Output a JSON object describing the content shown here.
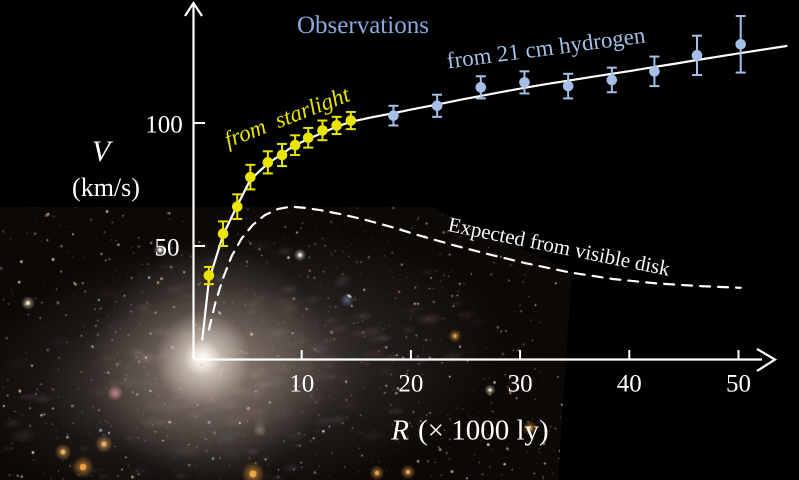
{
  "figure": {
    "background_color": "#000000",
    "axis_color": "#ffffff",
    "description": "Galaxy rotation curve plotted over a photograph of a spiral galaxy"
  },
  "chart_data": {
    "type": "scatter",
    "title": "",
    "x_axis": {
      "symbol": "R",
      "units": "(× 1000 ly)"
    },
    "y_axis": {
      "symbol": "V",
      "units": "(km/s)"
    },
    "xlim": [
      0,
      54
    ],
    "ylim": [
      0,
      150
    ],
    "x_ticks": [
      10,
      20,
      30,
      40,
      50
    ],
    "y_ticks": [
      50,
      100
    ],
    "grid": false,
    "annotations": [
      {
        "text": "Observations",
        "color": "#8aa9dc"
      },
      {
        "text": "from  starlight",
        "color": "#e9e500"
      },
      {
        "text": "from 21 cm hydrogen",
        "color": "#a5bfe8"
      },
      {
        "text": "Expected from visible disk",
        "color": "#f5f5f5"
      }
    ],
    "series": [
      {
        "name": "from starlight",
        "marker_color": "#e9e500",
        "R": [
          1.5,
          2.8,
          4.1,
          5.3,
          6.9,
          8.2,
          9.4,
          10.6,
          11.9,
          13.2,
          14.5
        ],
        "V": [
          38,
          55,
          66,
          78,
          84,
          87,
          91,
          94,
          97,
          99,
          101
        ],
        "err": [
          3.5,
          5,
          5,
          5,
          4.5,
          4.5,
          4,
          4,
          4,
          3.5,
          3.5
        ]
      },
      {
        "name": "from 21 cm hydrogen",
        "marker_color": "#a5bfe8",
        "R": [
          18.4,
          22.4,
          26.4,
          30.4,
          34.4,
          38.4,
          42.3,
          46.2,
          50.2
        ],
        "V": [
          103,
          107,
          114.5,
          116.5,
          115,
          117.5,
          121,
          127.5,
          132
        ],
        "err": [
          4,
          4.5,
          4.5,
          4.5,
          5,
          5,
          6,
          8,
          11.5
        ]
      }
    ],
    "curves": [
      {
        "name": "observed rotation curve fit",
        "style": "solid",
        "color": "#ffffff",
        "R": [
          0.9,
          1.5,
          2.8,
          4.1,
          5.3,
          6.9,
          8.2,
          9.4,
          10.6,
          11.9,
          13.2,
          14.5,
          16.4,
          18.4,
          20.4,
          22.4,
          24.4,
          26.4,
          28.4,
          30.4,
          32.4,
          34.4,
          36.4,
          38.4,
          40.4,
          42.3,
          44.3,
          46.2,
          48.2,
          50.2,
          52.5,
          54.4
        ],
        "V": [
          12,
          36,
          54.5,
          66.5,
          77,
          83.5,
          87.5,
          91,
          93.5,
          96,
          98.5,
          100.5,
          102.3,
          104,
          105.8,
          107.5,
          109.3,
          111,
          112.7,
          114.3,
          115.8,
          117.2,
          118.6,
          120,
          121.4,
          122.8,
          124.2,
          125.6,
          127,
          128.4,
          130,
          131.3
        ]
      },
      {
        "name": "expected from visible disk",
        "style": "dashed",
        "color": "#ffffff",
        "R": [
          1.5,
          2.1,
          2.8,
          3.6,
          4.5,
          5.5,
          6.6,
          7.8,
          9.0,
          10.3,
          11.8,
          13.5,
          15.5,
          18,
          21,
          24,
          27,
          30.5,
          34.5,
          38.5,
          42.5,
          46.5,
          50.2
        ],
        "V": [
          16,
          27,
          37,
          46,
          53,
          58.5,
          62.5,
          65,
          66,
          65.5,
          64.5,
          63,
          61,
          58,
          54,
          50.2,
          46.8,
          43,
          39.3,
          36.6,
          34.8,
          33.7,
          33
        ]
      }
    ]
  }
}
